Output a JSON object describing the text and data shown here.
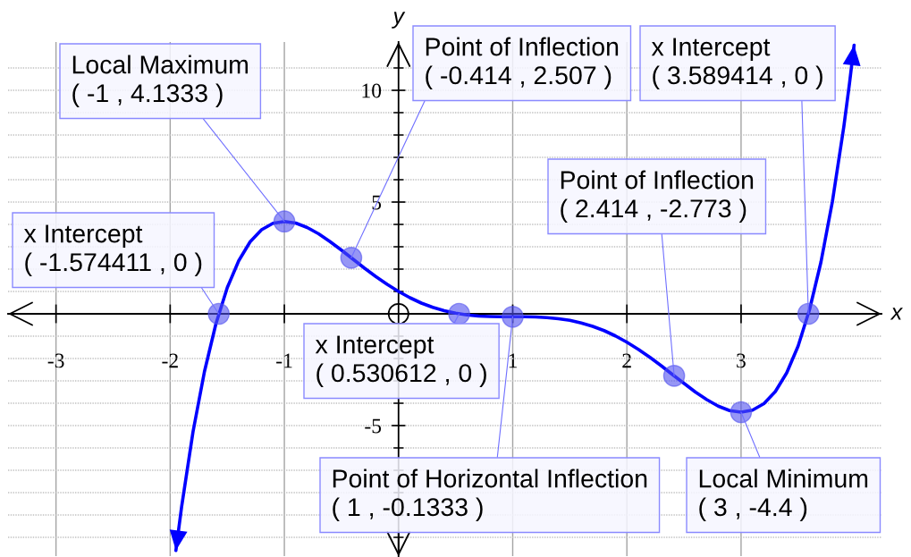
{
  "chart_data": {
    "type": "line",
    "xlabel": "x",
    "ylabel": "y",
    "xlim": [
      -3.42,
      4.23
    ],
    "ylim": [
      -10.84,
      12.16
    ],
    "xticks": [
      -3,
      -2,
      -1,
      1,
      2,
      3
    ],
    "yticks": [
      {
        "value": -10,
        "label": null
      },
      {
        "value": -9,
        "label": null
      },
      {
        "value": -8,
        "label": null
      },
      {
        "value": -7,
        "label": null
      },
      {
        "value": -6,
        "label": null
      },
      -5,
      {
        "value": -4,
        "label": null
      },
      {
        "value": -3,
        "label": null
      },
      {
        "value": -2,
        "label": null
      },
      {
        "value": -1,
        "label": null
      },
      {
        "value": 1,
        "label": null
      },
      {
        "value": 2,
        "label": null
      },
      {
        "value": 3,
        "label": null
      },
      {
        "value": 4,
        "label": null
      },
      5,
      {
        "value": 6,
        "label": null
      },
      {
        "value": 7,
        "label": null
      },
      {
        "value": 8,
        "label": null
      },
      {
        "value": 9,
        "label": null
      },
      10,
      {
        "value": 11,
        "label": null
      }
    ],
    "grid": true,
    "series": [
      {
        "color": "#0000ff",
        "marker": "none",
        "line_style": "solid",
        "x": [
          -1.95,
          -1.9,
          -1.8,
          -1.7,
          -1.6,
          -1.5,
          -1.4,
          -1.3,
          -1.2,
          -1.1,
          -1.0,
          -0.9,
          -0.8,
          -0.7,
          -0.6,
          -0.5,
          -0.4,
          -0.3,
          -0.2,
          -0.1,
          0,
          0.1,
          0.2,
          0.3,
          0.4,
          0.5,
          0.6,
          0.7,
          0.8,
          0.9,
          1.0,
          1.1,
          1.2,
          1.3,
          1.4,
          1.5,
          1.6,
          1.7,
          1.8,
          1.9,
          2.0,
          2.1,
          2.2,
          2.3,
          2.4,
          2.5,
          2.6,
          2.7,
          2.8,
          2.9,
          3.0,
          3.1,
          3.2,
          3.3,
          3.4,
          3.5,
          3.6,
          3.7,
          3.8,
          3.9,
          3.95,
          3.99
        ],
        "values": [
          -10.59,
          -8.64,
          -5.28,
          -2.59,
          -0.46,
          1.17,
          2.37,
          3.22,
          3.76,
          4.05,
          4.13,
          4.06,
          3.86,
          3.58,
          3.23,
          2.85,
          2.45,
          2.05,
          1.67,
          1.32,
          1.0,
          0.72,
          0.48,
          0.29,
          0.14,
          0.03,
          -0.05,
          -0.1,
          -0.12,
          -0.13,
          -0.13,
          -0.13,
          -0.14,
          -0.17,
          -0.22,
          -0.29,
          -0.41,
          -0.56,
          -0.75,
          -0.99,
          -1.27,
          -1.59,
          -1.94,
          -2.32,
          -2.72,
          -3.11,
          -3.5,
          -3.84,
          -4.13,
          -4.33,
          -4.4,
          -4.31,
          -4.02,
          -3.48,
          -2.64,
          -1.44,
          0.19,
          2.32,
          5.02,
          8.37,
          10.32,
          12.02
        ]
      },
      {
        "type": "scatter",
        "color": "#5050ee",
        "marker": "circle",
        "x": [
          -1.574411,
          -1,
          -0.414,
          0.530612,
          1,
          2.414,
          3,
          3.589414
        ],
        "values": [
          0,
          4.1333,
          2.507,
          0,
          -0.1333,
          -2.773,
          -4.4,
          0
        ]
      }
    ],
    "annotations": [
      {
        "text": "Local Maximum\n( -1 , 4.1333 )",
        "x": -1,
        "y": 4.1333
      },
      {
        "text": "Point of Inflection\n( -0.414 , 2.507 )",
        "x": -0.414,
        "y": 2.507
      },
      {
        "text": "x Intercept\n( 3.589414 , 0 )",
        "x": 3.589414,
        "y": 0
      },
      {
        "text": "Point of Inflection\n( 2.414 , -2.773 )",
        "x": 2.414,
        "y": -2.773
      },
      {
        "text": "x Intercept\n( -1.574411 , 0 )",
        "x": -1.574411,
        "y": 0
      },
      {
        "text": "x Intercept\n( 0.530612 , 0 )",
        "x": 0.530612,
        "y": 0
      },
      {
        "text": "Point of Horizontal Inflection\n( 1 , -0.1333 )",
        "x": 1,
        "y": -0.1333
      },
      {
        "text": "Local Minimum\n( 3 , -4.4 )",
        "x": 3,
        "y": -4.4
      }
    ]
  }
}
